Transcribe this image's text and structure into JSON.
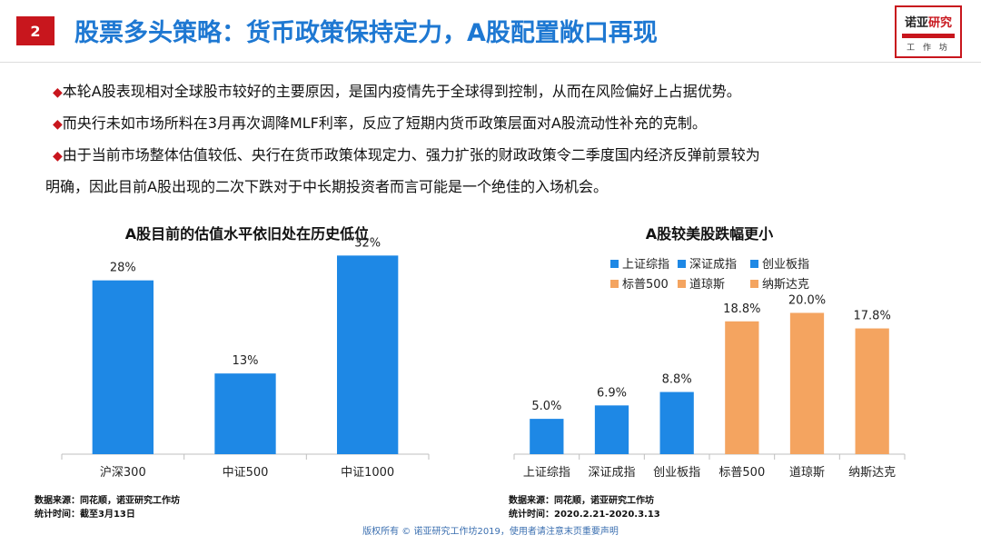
{
  "header": {
    "badge": "2",
    "title": "股票多头策略：货币政策保持定力，A股配置敞口再现",
    "logo_line1_a": "诺亚",
    "logo_line1_b": "研究",
    "logo_line2": "工 作 坊"
  },
  "bullets": [
    "本轮A股表现相对全球股市较好的主要原因，是国内疫情先于全球得到控制，从而在风险偏好上占据优势。",
    "而央行未如市场所料在3月再次调降MLF利率，反应了短期内货币政策层面对A股流动性补充的克制。",
    "由于当前市场整体估值较低、央行在货币政策体现定力、强力扩张的财政政策令二季度国内经济反弹前景较为",
    "明确，因此目前A股出现的二次下跌对于中长期投资者而言可能是一个绝佳的入场机会。"
  ],
  "chart_data": [
    {
      "type": "bar",
      "title": "A股目前的估值水平依旧处在历史低位",
      "categories": [
        "沪深300",
        "中证500",
        "中证1000"
      ],
      "values": [
        28,
        13,
        32
      ],
      "labels": [
        "28%",
        "13%",
        "32%"
      ],
      "unit": "%",
      "color": "#1e88e5",
      "ylim": [
        0,
        36
      ],
      "grid": false
    },
    {
      "type": "bar",
      "title": "A股较美股跌幅更小",
      "categories": [
        "上证综指",
        "深证成指",
        "创业板指",
        "标普500",
        "道琼斯",
        "纳斯达克"
      ],
      "values": [
        5.0,
        6.9,
        8.8,
        18.8,
        20.0,
        17.8
      ],
      "labels": [
        "5.0%",
        "6.9%",
        "8.8%",
        "18.8%",
        "20.0%",
        "17.8%"
      ],
      "unit": "%",
      "colors": [
        "#1e88e5",
        "#1e88e5",
        "#1e88e5",
        "#f4a460",
        "#f4a460",
        "#f4a460"
      ],
      "legend": {
        "placement": "top",
        "entries": [
          {
            "name": "上证综指",
            "color": "#1e88e5"
          },
          {
            "name": "深证成指",
            "color": "#1e88e5"
          },
          {
            "name": "创业板指",
            "color": "#1e88e5"
          },
          {
            "name": "标普500",
            "color": "#f4a460"
          },
          {
            "name": "道琼斯",
            "color": "#f4a460"
          },
          {
            "name": "纳斯达克",
            "color": "#f4a460"
          }
        ]
      },
      "ylim": [
        0,
        22.5
      ],
      "grid": false
    }
  ],
  "sources": {
    "left": [
      "数据来源：同花顺，诺亚研究工作坊",
      "统计时间：截至3月13日"
    ],
    "right": [
      "数据来源：同花顺，诺亚研究工作坊",
      "统计时间：2020.2.21-2020.3.13"
    ]
  },
  "footer": "版权所有 © 诺亚研究工作坊2019，使用者请注意末页重要声明"
}
